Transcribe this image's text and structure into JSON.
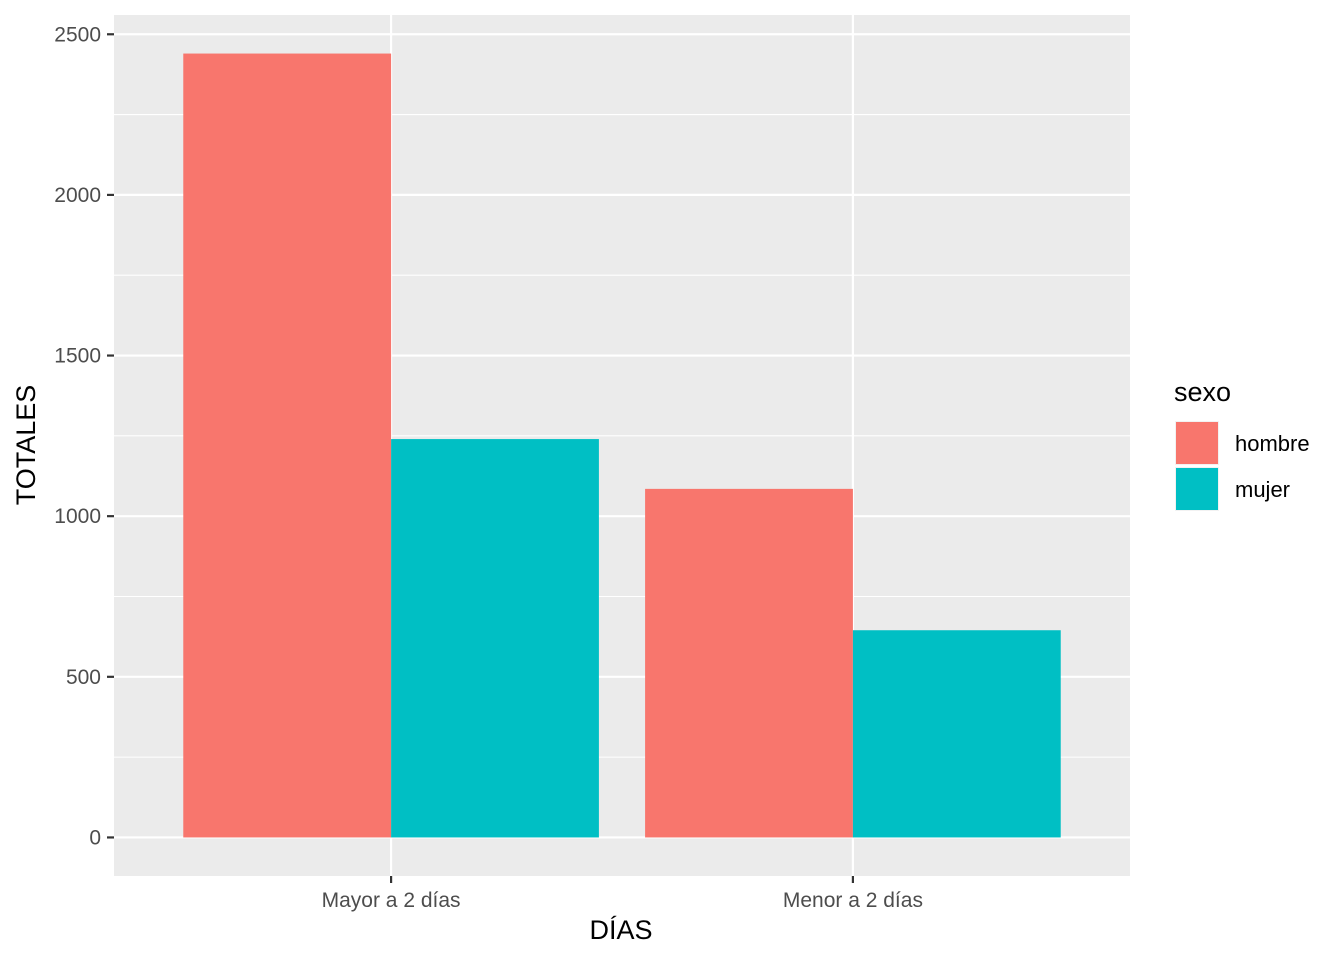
{
  "chart_data": {
    "type": "bar",
    "categories": [
      "Mayor a 2 días",
      "Menor a 2 días"
    ],
    "series": [
      {
        "name": "hombre",
        "values": [
          2440,
          1085
        ],
        "color": "#F8766D"
      },
      {
        "name": "mujer",
        "values": [
          1240,
          645
        ],
        "color": "#00BFC4"
      }
    ],
    "xlabel": "DÍAS",
    "ylabel": "TOTALES",
    "ylim": [
      -120,
      2560
    ],
    "yticks": [
      0,
      500,
      1000,
      1500,
      2000,
      2500
    ],
    "legend_title": "sexo",
    "legend_position": "right",
    "grid": true,
    "panel_color": "#EBEBEB"
  }
}
